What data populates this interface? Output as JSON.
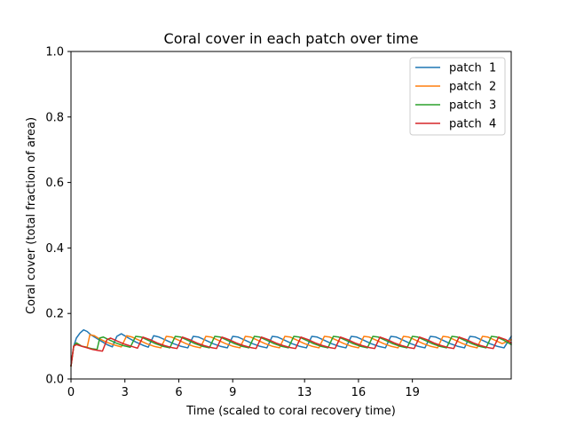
{
  "chart_data": {
    "type": "line",
    "title": "Coral cover in each patch over time",
    "xlabel": "Time (scaled to coral recovery time)",
    "ylabel": "Coral cover (total fraction of area)",
    "xlim": [
      0,
      24.5
    ],
    "ylim": [
      0,
      1.0
    ],
    "xticks": [
      0,
      3,
      6,
      9,
      13,
      16,
      19
    ],
    "xtick_labels": [
      "0",
      "3",
      "6",
      "9",
      "13",
      "16",
      "19"
    ],
    "yticks": [
      0.0,
      0.2,
      0.4,
      0.6,
      0.8,
      1.0
    ],
    "ytick_labels": [
      "0.0",
      "0.2",
      "0.4",
      "0.6",
      "0.8",
      "1.0"
    ],
    "legend_position": "top-right",
    "series": [
      {
        "name": "patch  1",
        "color": "#1f77b4",
        "x": [
          0,
          0.15,
          0.3,
          0.5,
          0.7,
          0.9,
          1.1,
          1.4,
          1.7,
          2.0,
          2.3,
          2.55,
          2.8,
          3.2,
          3.6,
          4.0,
          4.3,
          4.6,
          4.9,
          5.3,
          5.7,
          6.1,
          6.5,
          6.8,
          7.1,
          7.5,
          7.9,
          8.3,
          8.7,
          9.0,
          9.3,
          9.7,
          10.1,
          10.5,
          10.9,
          11.2,
          11.5,
          11.9,
          12.3,
          12.7,
          13.1,
          13.4,
          13.7,
          14.1,
          14.5,
          14.9,
          15.3,
          15.6,
          15.9,
          16.3,
          16.7,
          17.1,
          17.5,
          17.8,
          18.1,
          18.5,
          18.9,
          19.3,
          19.7,
          20.0,
          20.3,
          20.7,
          21.1,
          21.5,
          21.9,
          22.2,
          22.5,
          22.9,
          23.3,
          23.7,
          24.1,
          24.5
        ],
        "y": [
          0.04,
          0.1,
          0.125,
          0.14,
          0.15,
          0.145,
          0.135,
          0.125,
          0.115,
          0.105,
          0.098,
          0.13,
          0.138,
          0.125,
          0.113,
          0.103,
          0.097,
          0.132,
          0.128,
          0.118,
          0.108,
          0.1,
          0.095,
          0.13,
          0.128,
          0.118,
          0.108,
          0.1,
          0.095,
          0.13,
          0.128,
          0.118,
          0.108,
          0.1,
          0.095,
          0.13,
          0.128,
          0.118,
          0.108,
          0.1,
          0.095,
          0.13,
          0.128,
          0.118,
          0.108,
          0.1,
          0.095,
          0.13,
          0.128,
          0.118,
          0.108,
          0.1,
          0.095,
          0.13,
          0.128,
          0.118,
          0.108,
          0.1,
          0.095,
          0.13,
          0.128,
          0.118,
          0.108,
          0.1,
          0.095,
          0.13,
          0.128,
          0.118,
          0.108,
          0.1,
          0.095,
          0.13
        ]
      },
      {
        "name": "patch  2",
        "color": "#ff7f0e",
        "x": [
          0,
          0.15,
          0.3,
          0.6,
          0.9,
          1.05,
          1.3,
          1.6,
          2.0,
          2.4,
          2.8,
          3.1,
          3.4,
          3.8,
          4.2,
          4.6,
          5.0,
          5.3,
          5.6,
          6.0,
          6.4,
          6.8,
          7.2,
          7.5,
          7.8,
          8.2,
          8.6,
          9.0,
          9.4,
          9.7,
          10.0,
          10.4,
          10.8,
          11.2,
          11.6,
          11.9,
          12.2,
          12.6,
          13.0,
          13.4,
          13.8,
          14.1,
          14.4,
          14.8,
          15.2,
          15.6,
          16.0,
          16.3,
          16.6,
          17.0,
          17.4,
          17.8,
          18.2,
          18.5,
          18.8,
          19.2,
          19.6,
          20.0,
          20.4,
          20.7,
          21.0,
          21.4,
          21.8,
          22.2,
          22.6,
          22.9,
          23.2,
          23.6,
          24.0,
          24.5
        ],
        "y": [
          0.04,
          0.1,
          0.11,
          0.1,
          0.097,
          0.135,
          0.132,
          0.122,
          0.112,
          0.104,
          0.098,
          0.132,
          0.128,
          0.118,
          0.108,
          0.1,
          0.095,
          0.13,
          0.128,
          0.118,
          0.108,
          0.1,
          0.095,
          0.13,
          0.128,
          0.118,
          0.108,
          0.1,
          0.095,
          0.13,
          0.128,
          0.118,
          0.108,
          0.1,
          0.095,
          0.13,
          0.128,
          0.118,
          0.108,
          0.1,
          0.095,
          0.13,
          0.128,
          0.118,
          0.108,
          0.1,
          0.095,
          0.13,
          0.128,
          0.118,
          0.108,
          0.1,
          0.095,
          0.13,
          0.128,
          0.118,
          0.108,
          0.1,
          0.095,
          0.13,
          0.128,
          0.118,
          0.108,
          0.1,
          0.095,
          0.13,
          0.128,
          0.118,
          0.108,
          0.12
        ]
      },
      {
        "name": "patch  3",
        "color": "#2ca02c",
        "x": [
          0,
          0.15,
          0.3,
          0.6,
          0.9,
          1.2,
          1.45,
          1.6,
          1.8,
          2.1,
          2.5,
          2.9,
          3.3,
          3.6,
          3.9,
          4.3,
          4.7,
          5.1,
          5.5,
          5.8,
          6.1,
          6.5,
          6.9,
          7.3,
          7.7,
          8.0,
          8.3,
          8.7,
          9.1,
          9.5,
          9.9,
          10.2,
          10.5,
          10.9,
          11.3,
          11.7,
          12.1,
          12.4,
          12.7,
          13.1,
          13.5,
          13.9,
          14.3,
          14.6,
          14.9,
          15.3,
          15.7,
          16.1,
          16.5,
          16.8,
          17.1,
          17.5,
          17.9,
          18.3,
          18.7,
          19.0,
          19.3,
          19.7,
          20.1,
          20.5,
          20.9,
          21.2,
          21.5,
          21.9,
          22.3,
          22.7,
          23.1,
          23.4,
          23.7,
          24.1,
          24.5
        ],
        "y": [
          0.04,
          0.1,
          0.11,
          0.1,
          0.096,
          0.092,
          0.09,
          0.125,
          0.128,
          0.12,
          0.11,
          0.102,
          0.097,
          0.13,
          0.128,
          0.118,
          0.108,
          0.1,
          0.095,
          0.13,
          0.128,
          0.118,
          0.108,
          0.1,
          0.095,
          0.13,
          0.128,
          0.118,
          0.108,
          0.1,
          0.095,
          0.13,
          0.128,
          0.118,
          0.108,
          0.1,
          0.095,
          0.13,
          0.128,
          0.118,
          0.108,
          0.1,
          0.095,
          0.13,
          0.128,
          0.118,
          0.108,
          0.1,
          0.095,
          0.13,
          0.128,
          0.118,
          0.108,
          0.1,
          0.095,
          0.13,
          0.128,
          0.118,
          0.108,
          0.1,
          0.095,
          0.13,
          0.128,
          0.118,
          0.108,
          0.1,
          0.095,
          0.13,
          0.128,
          0.118,
          0.105
        ]
      },
      {
        "name": "patch  4",
        "color": "#d62728",
        "x": [
          0,
          0.15,
          0.3,
          0.6,
          0.9,
          1.2,
          1.5,
          1.75,
          2.0,
          2.2,
          2.6,
          3.0,
          3.4,
          3.7,
          4.0,
          4.4,
          4.8,
          5.2,
          5.6,
          5.9,
          6.2,
          6.6,
          7.0,
          7.4,
          7.8,
          8.1,
          8.4,
          8.8,
          9.2,
          9.6,
          10.0,
          10.3,
          10.6,
          11.0,
          11.4,
          11.8,
          12.2,
          12.5,
          12.8,
          13.2,
          13.6,
          14.0,
          14.4,
          14.7,
          15.0,
          15.4,
          15.8,
          16.2,
          16.6,
          16.9,
          17.2,
          17.6,
          18.0,
          18.4,
          18.8,
          19.1,
          19.4,
          19.8,
          20.2,
          20.6,
          21.0,
          21.3,
          21.6,
          22.0,
          22.4,
          22.8,
          23.2,
          23.5,
          23.8,
          24.2,
          24.5
        ],
        "y": [
          0.04,
          0.1,
          0.105,
          0.1,
          0.095,
          0.09,
          0.087,
          0.085,
          0.12,
          0.125,
          0.115,
          0.106,
          0.099,
          0.094,
          0.128,
          0.12,
          0.11,
          0.102,
          0.096,
          0.093,
          0.128,
          0.12,
          0.11,
          0.102,
          0.096,
          0.093,
          0.128,
          0.12,
          0.11,
          0.102,
          0.096,
          0.093,
          0.128,
          0.12,
          0.11,
          0.102,
          0.096,
          0.093,
          0.128,
          0.12,
          0.11,
          0.102,
          0.096,
          0.093,
          0.128,
          0.12,
          0.11,
          0.102,
          0.096,
          0.093,
          0.128,
          0.12,
          0.11,
          0.102,
          0.096,
          0.093,
          0.128,
          0.12,
          0.11,
          0.102,
          0.096,
          0.093,
          0.128,
          0.12,
          0.11,
          0.102,
          0.096,
          0.093,
          0.128,
          0.12,
          0.11
        ]
      }
    ]
  }
}
